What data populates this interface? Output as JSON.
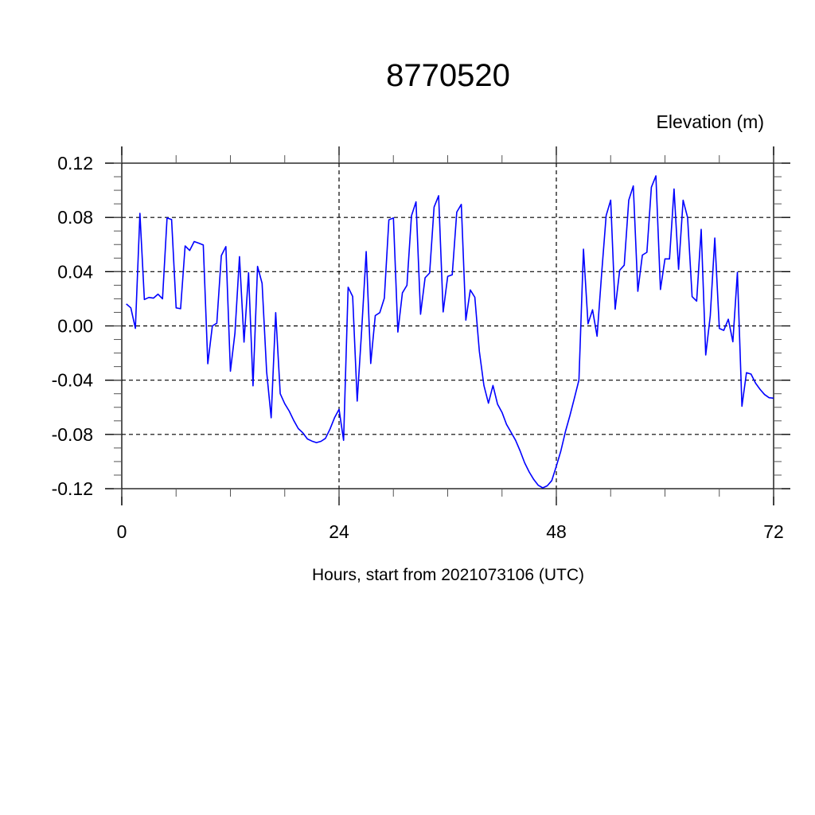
{
  "chart_data": {
    "type": "line",
    "title": "8770520",
    "ylabel": "Elevation (m)",
    "xlabel": "Hours, start from 2021073106 (UTC)",
    "xlim": [
      0,
      72
    ],
    "ylim": [
      -0.12,
      0.12
    ],
    "x_ticks": [
      0,
      24,
      48,
      72
    ],
    "x_tick_labels": [
      "0",
      "24",
      "48",
      "72"
    ],
    "x_minor_step": 6,
    "y_ticks": [
      0.12,
      0.08,
      0.04,
      0.0,
      -0.04,
      -0.08,
      -0.12
    ],
    "y_tick_labels": [
      "0.12",
      "0.08",
      "0.04",
      "0.00",
      "-0.04",
      "-0.08",
      "-0.12"
    ],
    "y_minor_step": 0.01,
    "grid": "dashed at interior major ticks",
    "legend": "none",
    "series": [
      {
        "color": "#0000ff",
        "x_start": 0.5,
        "x_step": 0.5,
        "values": [
          0.0162,
          0.0133,
          -0.0018,
          0.083,
          0.0195,
          0.021,
          0.0205,
          0.0234,
          0.02,
          0.0796,
          0.0784,
          0.0133,
          0.0127,
          0.059,
          0.0556,
          0.0622,
          0.061,
          0.0597,
          -0.0279,
          0.0,
          0.002,
          0.0519,
          0.0585,
          -0.0334,
          -0.0053,
          0.0511,
          -0.0119,
          0.0392,
          -0.0441,
          0.0439,
          0.0314,
          -0.0336,
          -0.0677,
          0.0098,
          -0.05,
          -0.0574,
          -0.0628,
          -0.0697,
          -0.0757,
          -0.0788,
          -0.0833,
          -0.0849,
          -0.086,
          -0.0851,
          -0.0829,
          -0.0761,
          -0.0677,
          -0.0615,
          -0.0843,
          0.0285,
          0.0217,
          -0.0554,
          -0.0033,
          0.0548,
          -0.0277,
          0.0076,
          0.0098,
          0.0205,
          0.0782,
          0.0796,
          -0.0045,
          0.0244,
          0.0299,
          0.0812,
          0.0915,
          0.0086,
          0.0355,
          0.039,
          0.0876,
          0.096,
          0.0103,
          0.0365,
          0.0377,
          0.0839,
          0.0896,
          0.0043,
          0.0265,
          0.0211,
          -0.0189,
          -0.0439,
          -0.057,
          -0.0439,
          -0.0576,
          -0.0638,
          -0.0726,
          -0.0784,
          -0.0843,
          -0.0921,
          -0.1009,
          -0.1077,
          -0.1132,
          -0.1175,
          -0.1194,
          -0.1179,
          -0.114,
          -0.1034,
          -0.0921,
          -0.078,
          -0.066,
          -0.053,
          -0.0399,
          0.0566,
          0.0016,
          0.0119,
          -0.0076,
          0.0383,
          0.0814,
          0.0927,
          0.0123,
          0.0411,
          0.0448,
          0.0927,
          0.1032,
          0.0255,
          0.0522,
          0.0543,
          0.1022,
          0.1106,
          0.0269,
          0.0494,
          0.0494,
          0.101,
          0.0418,
          0.0927,
          0.08,
          0.0216,
          0.0183,
          0.0712,
          -0.0214,
          0.0074,
          0.0648,
          -0.0018,
          -0.0033,
          0.0049,
          -0.0117,
          0.0395,
          -0.0592,
          -0.0345,
          -0.0355,
          -0.0422,
          -0.0467,
          -0.0506,
          -0.0529,
          -0.0533
        ]
      }
    ]
  }
}
